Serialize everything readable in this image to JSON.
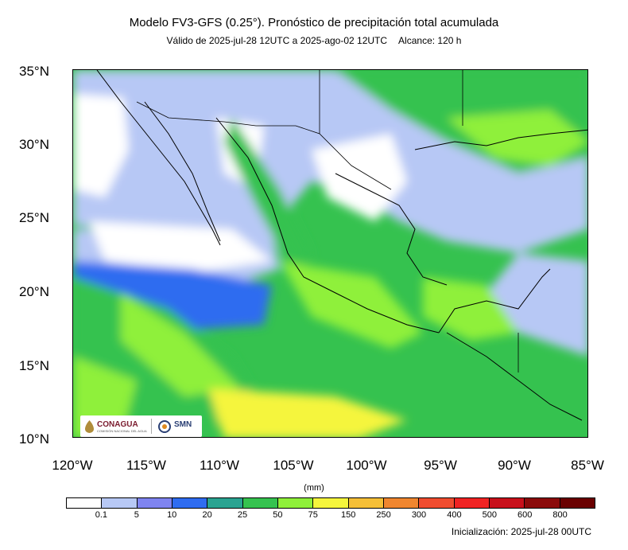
{
  "header": {
    "title": "Modelo FV3-GFS (0.25°). Pronóstico de precipitación total acumulada",
    "valid": "Válido de 2025-jul-28 12UTC a 2025-ago-02 12UTC",
    "range": "Alcance: 120 h"
  },
  "axes": {
    "lat_labels": [
      "35°N",
      "30°N",
      "25°N",
      "20°N",
      "15°N",
      "10°N"
    ],
    "lon_labels": [
      "120°W",
      "115°W",
      "110°W",
      "105°W",
      "100°W",
      "95°W",
      "90°W",
      "85°W"
    ]
  },
  "logos": {
    "conagua": "CONAGUA",
    "conagua_sub": "COMISIÓN NACIONAL DEL AGUA",
    "smn": "SMN"
  },
  "colorbar": {
    "unit": "(mm)",
    "colors": [
      "#ffffff",
      "#b7c8f5",
      "#7f84f0",
      "#2f6cf0",
      "#2aa391",
      "#35c24f",
      "#8ff03a",
      "#f5f53c",
      "#f5bf37",
      "#f0862f",
      "#f04c2f",
      "#f02323",
      "#c8101b",
      "#8b0a0a",
      "#6a0000"
    ],
    "labels": [
      "0.1",
      "5",
      "10",
      "20",
      "25",
      "50",
      "75",
      "150",
      "250",
      "300",
      "400",
      "500",
      "600",
      "800"
    ]
  },
  "footer": {
    "init": "Inicialización: 2025-jul-28 00UTC"
  }
}
